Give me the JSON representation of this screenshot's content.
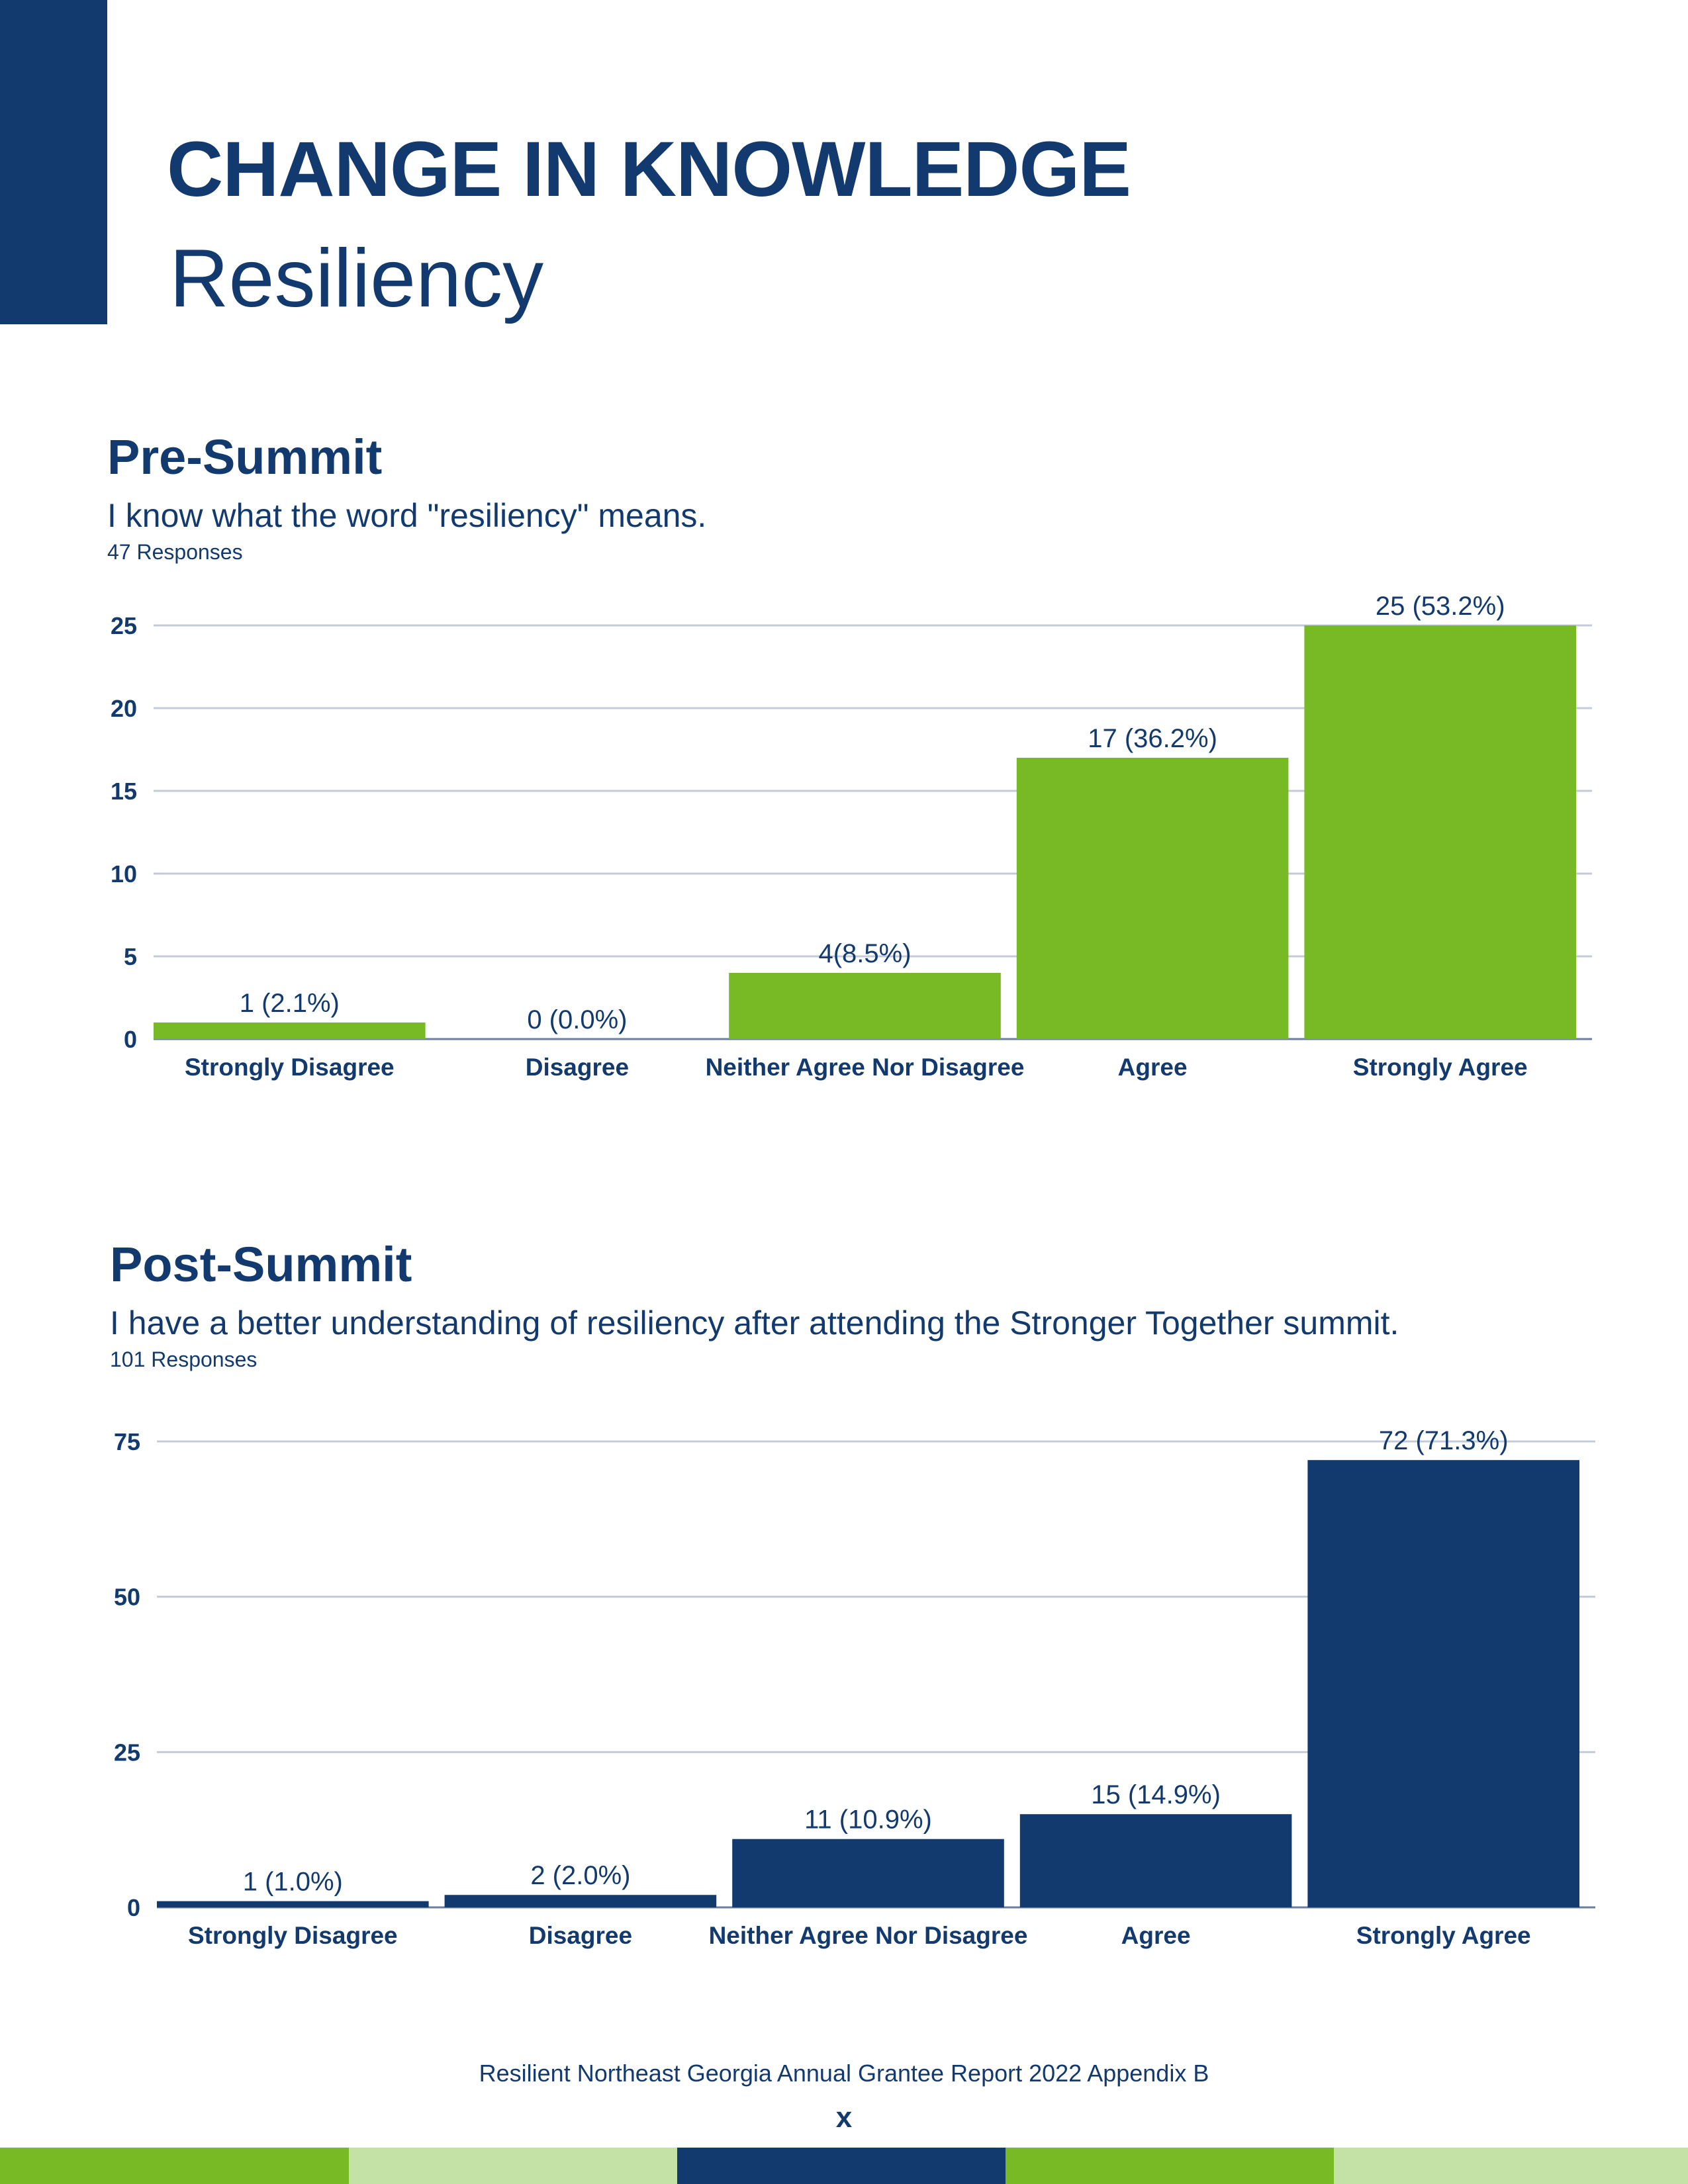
{
  "header": {
    "title": "CHANGE IN KNOWLEDGE",
    "subtitle": "Resiliency"
  },
  "sections": [
    {
      "heading": "Pre-Summit",
      "question": "I know what the word \"resiliency\" means.",
      "responses": "47 Responses"
    },
    {
      "heading": "Post-Summit",
      "question": "I have a better understanding of resiliency after attending the Stronger Together summit.",
      "responses": "101 Responses"
    }
  ],
  "chart_data": [
    {
      "type": "bar",
      "categories": [
        "Strongly Disagree",
        "Disagree",
        "Neither Agree Nor Disagree",
        "Agree",
        "Strongly Agree"
      ],
      "values": [
        1,
        0,
        4,
        17,
        25
      ],
      "data_labels": [
        "1 (2.1%)",
        "0 (0.0%)",
        "4(8.5%)",
        "17 (36.2%)",
        "25 (53.2%)"
      ],
      "ylim": [
        0,
        25
      ],
      "yticks": [
        0,
        5,
        10,
        15,
        20,
        25
      ],
      "grid": true,
      "bar_color": "#78b926"
    },
    {
      "type": "bar",
      "categories": [
        "Strongly Disagree",
        "Disagree",
        "Neither Agree Nor Disagree",
        "Agree",
        "Strongly Agree"
      ],
      "values": [
        1,
        2,
        11,
        15,
        72
      ],
      "data_labels": [
        "1 (1.0%)",
        "2 (2.0%)",
        "11 (10.9%)",
        "15 (14.9%)",
        "72 (71.3%)"
      ],
      "ylim": [
        0,
        75
      ],
      "yticks": [
        0,
        25,
        50,
        75
      ],
      "grid": true,
      "bar_color": "#123a6e"
    }
  ],
  "footer": {
    "report": "Resilient Northeast Georgia Annual Grantee Report 2022 Appendix B",
    "page": "x"
  },
  "colors": {
    "navy": "#123a6e",
    "green": "#78b926",
    "light_green": "#c4e2a6",
    "grid": "#c4cbd8"
  }
}
